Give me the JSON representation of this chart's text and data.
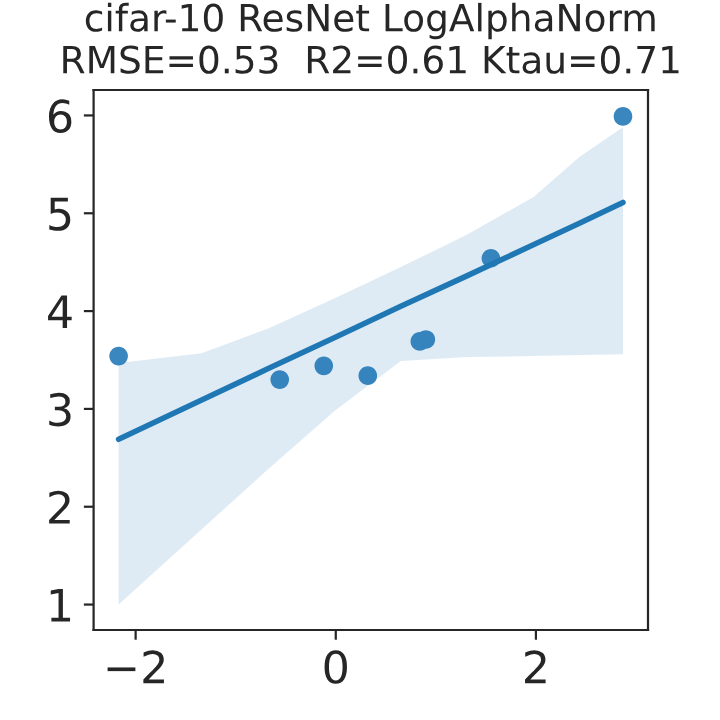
{
  "chart_data": {
    "type": "scatter",
    "title": "cifar-10 ResNet LogAlphaNorm\nRMSE=0.53  R2=0.61 Ktau=0.71",
    "xlim": [
      -2.42,
      3.12
    ],
    "xticks": [
      {
        "value": -2,
        "label": "−2"
      },
      0,
      2
    ],
    "ylim": [
      0.74,
      6.26
    ],
    "yticks": [
      1,
      2,
      3,
      4,
      5,
      6
    ],
    "grid": false,
    "legend": false,
    "series": [
      {
        "marker": "circle",
        "color": "#3a87c0",
        "x": [
          -2.17,
          -0.56,
          -0.12,
          0.32,
          0.84,
          0.9,
          1.55,
          2.87
        ],
        "values": [
          3.54,
          3.3,
          3.44,
          3.34,
          3.69,
          3.71,
          4.54,
          5.99
        ]
      },
      {
        "type": "line",
        "color": "#1f77b4",
        "line_style": "solid",
        "x": [
          -2.17,
          -1.34,
          -0.68,
          -0.01,
          0.65,
          1.31,
          1.98,
          2.44,
          2.87
        ],
        "values": [
          2.69,
          3.09,
          3.41,
          3.73,
          4.05,
          4.36,
          4.68,
          4.9,
          5.11
        ],
        "lower": [
          1.0,
          1.77,
          2.38,
          2.98,
          3.49,
          3.53,
          3.54,
          3.55,
          3.56
        ],
        "upper": [
          3.47,
          3.57,
          3.82,
          4.13,
          4.45,
          4.78,
          5.17,
          5.58,
          5.88
        ]
      }
    ]
  }
}
